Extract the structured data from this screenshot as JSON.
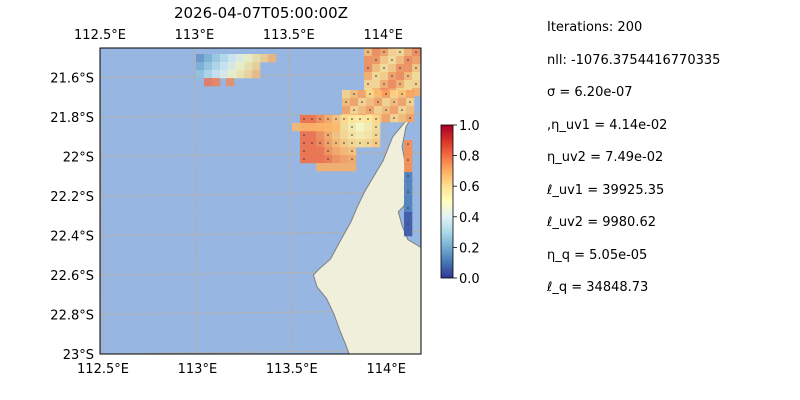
{
  "title": "2026-04-07T05:00:00Z",
  "map": {
    "lon_range": [
      112.5,
      114.2
    ],
    "lat_range": [
      -23.0,
      -21.45
    ],
    "lon_ticks": [
      {
        "value": 112.5,
        "label": "112.5°E"
      },
      {
        "value": 113.0,
        "label": "113°E"
      },
      {
        "value": 113.5,
        "label": "113.5°E"
      },
      {
        "value": 114.0,
        "label": "114°E"
      }
    ],
    "lat_ticks": [
      {
        "value": -21.6,
        "label": "21.6°S"
      },
      {
        "value": -21.8,
        "label": "21.8°S"
      },
      {
        "value": -22.0,
        "label": "22°S"
      },
      {
        "value": -22.2,
        "label": "22.2°S"
      },
      {
        "value": -22.4,
        "label": "22.4°S"
      },
      {
        "value": -22.6,
        "label": "22.6°S"
      },
      {
        "value": -22.8,
        "label": "22.8°S"
      },
      {
        "value": -23.0,
        "label": "23°S"
      }
    ],
    "grid": true,
    "ocean_color": "#97b6e1",
    "land_color": "#efefdb",
    "coast_color": "#808080"
  },
  "colorbar": {
    "min": 0.0,
    "max": 1.0,
    "ticks": [
      {
        "value": 0.0,
        "label": "0.0"
      },
      {
        "value": 0.2,
        "label": "0.2"
      },
      {
        "value": 0.4,
        "label": "0.4"
      },
      {
        "value": 0.6,
        "label": "0.6"
      },
      {
        "value": 0.8,
        "label": "0.8"
      },
      {
        "value": 1.0,
        "label": "1.0"
      }
    ],
    "colormap": [
      "#313695",
      "#4575b4",
      "#74add1",
      "#abd9e9",
      "#e0f3f8",
      "#ffffbf",
      "#fee090",
      "#fdae61",
      "#f46d43",
      "#d73027",
      "#a50026"
    ]
  },
  "stats": [
    "Iterations: 200",
    "nll: -1076.3754416770335",
    "σ = 6.20e-07",
    ",η_uv1 = 4.14e-02",
    "η_uv2 = 7.49e-02",
    "ℓ_uv1 = 39925.35",
    "ℓ_uv2 = 9980.62",
    "η_q = 5.05e-05",
    "ℓ_q = 34848.73"
  ]
}
